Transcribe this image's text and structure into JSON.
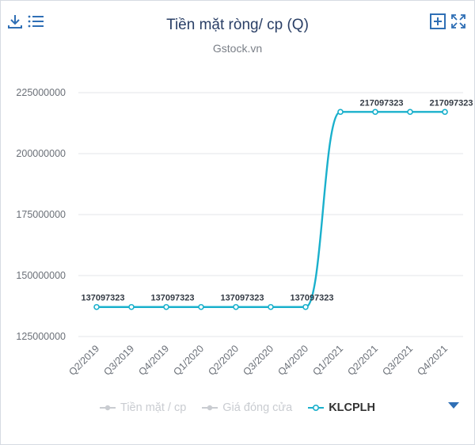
{
  "header": {
    "title": "Tiền mặt ròng/ cp (Q)",
    "subtitle": "Gstock.vn"
  },
  "toolbar": {
    "left_icons": [
      "download-icon",
      "menu-list-icon"
    ],
    "right_icons": [
      "add-box-icon",
      "fullscreen-icon"
    ],
    "icon_color": "#2f6fb5"
  },
  "legend": {
    "items": [
      {
        "label": "Tiền mặt / cp",
        "state": "inactive"
      },
      {
        "label": "Giá đóng cửa",
        "state": "inactive"
      },
      {
        "label": "KLCPLH",
        "state": "active"
      }
    ],
    "nav_icon": "triangle-down-icon"
  },
  "chart_data": {
    "type": "line",
    "title": "Tiền mặt ròng/ cp (Q)",
    "subtitle": "Gstock.vn",
    "categories": [
      "Q2/2019",
      "Q3/2019",
      "Q4/2019",
      "Q1/2020",
      "Q2/2020",
      "Q3/2020",
      "Q4/2020",
      "Q1/2021",
      "Q2/2021",
      "Q3/2021",
      "Q4/2021"
    ],
    "series": [
      {
        "name": "KLCPLH",
        "color": "#1ab0cc",
        "values": [
          137097323,
          137097323,
          137097323,
          137097323,
          137097323,
          137097323,
          137097323,
          217097323,
          217097323,
          217097323,
          217097323
        ],
        "labeled_indices": [
          0,
          2,
          4,
          6,
          8,
          10
        ]
      }
    ],
    "yticks": [
      125000000,
      150000000,
      175000000,
      200000000,
      225000000
    ],
    "ylim": [
      125000000,
      225000000
    ],
    "grid": "horizontal",
    "legend_position": "bottom"
  }
}
